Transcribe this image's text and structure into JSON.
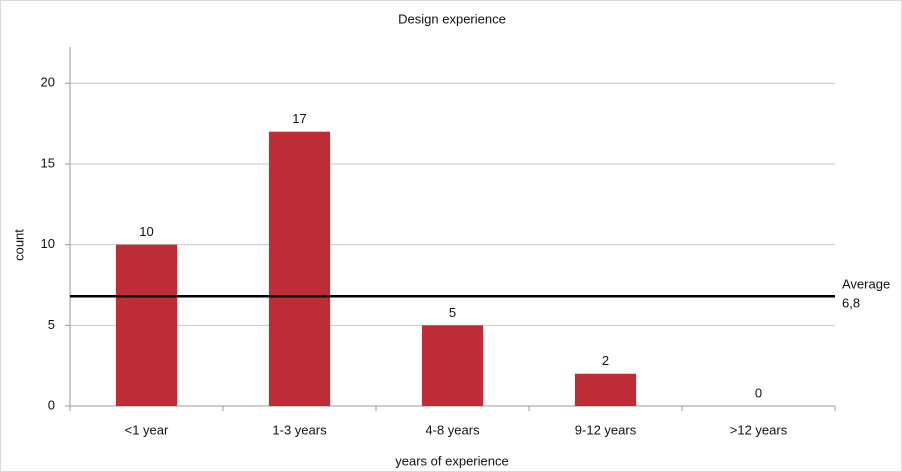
{
  "chart_data": {
    "type": "bar",
    "title": "Design experience",
    "x_label": "years of experience",
    "y_label": "count",
    "categories": [
      "<1 year",
      "1-3 years",
      "4-8 years",
      "9-12 years",
      ">12 years"
    ],
    "values": [
      10,
      17,
      5,
      2,
      0
    ],
    "color": "#be2d36",
    "ylim": [
      0,
      22
    ],
    "yticks": [
      0,
      5,
      10,
      15,
      20
    ],
    "grid": true,
    "average_line": {
      "name": "Average",
      "value": 6.8,
      "value_label": "6,8"
    }
  }
}
